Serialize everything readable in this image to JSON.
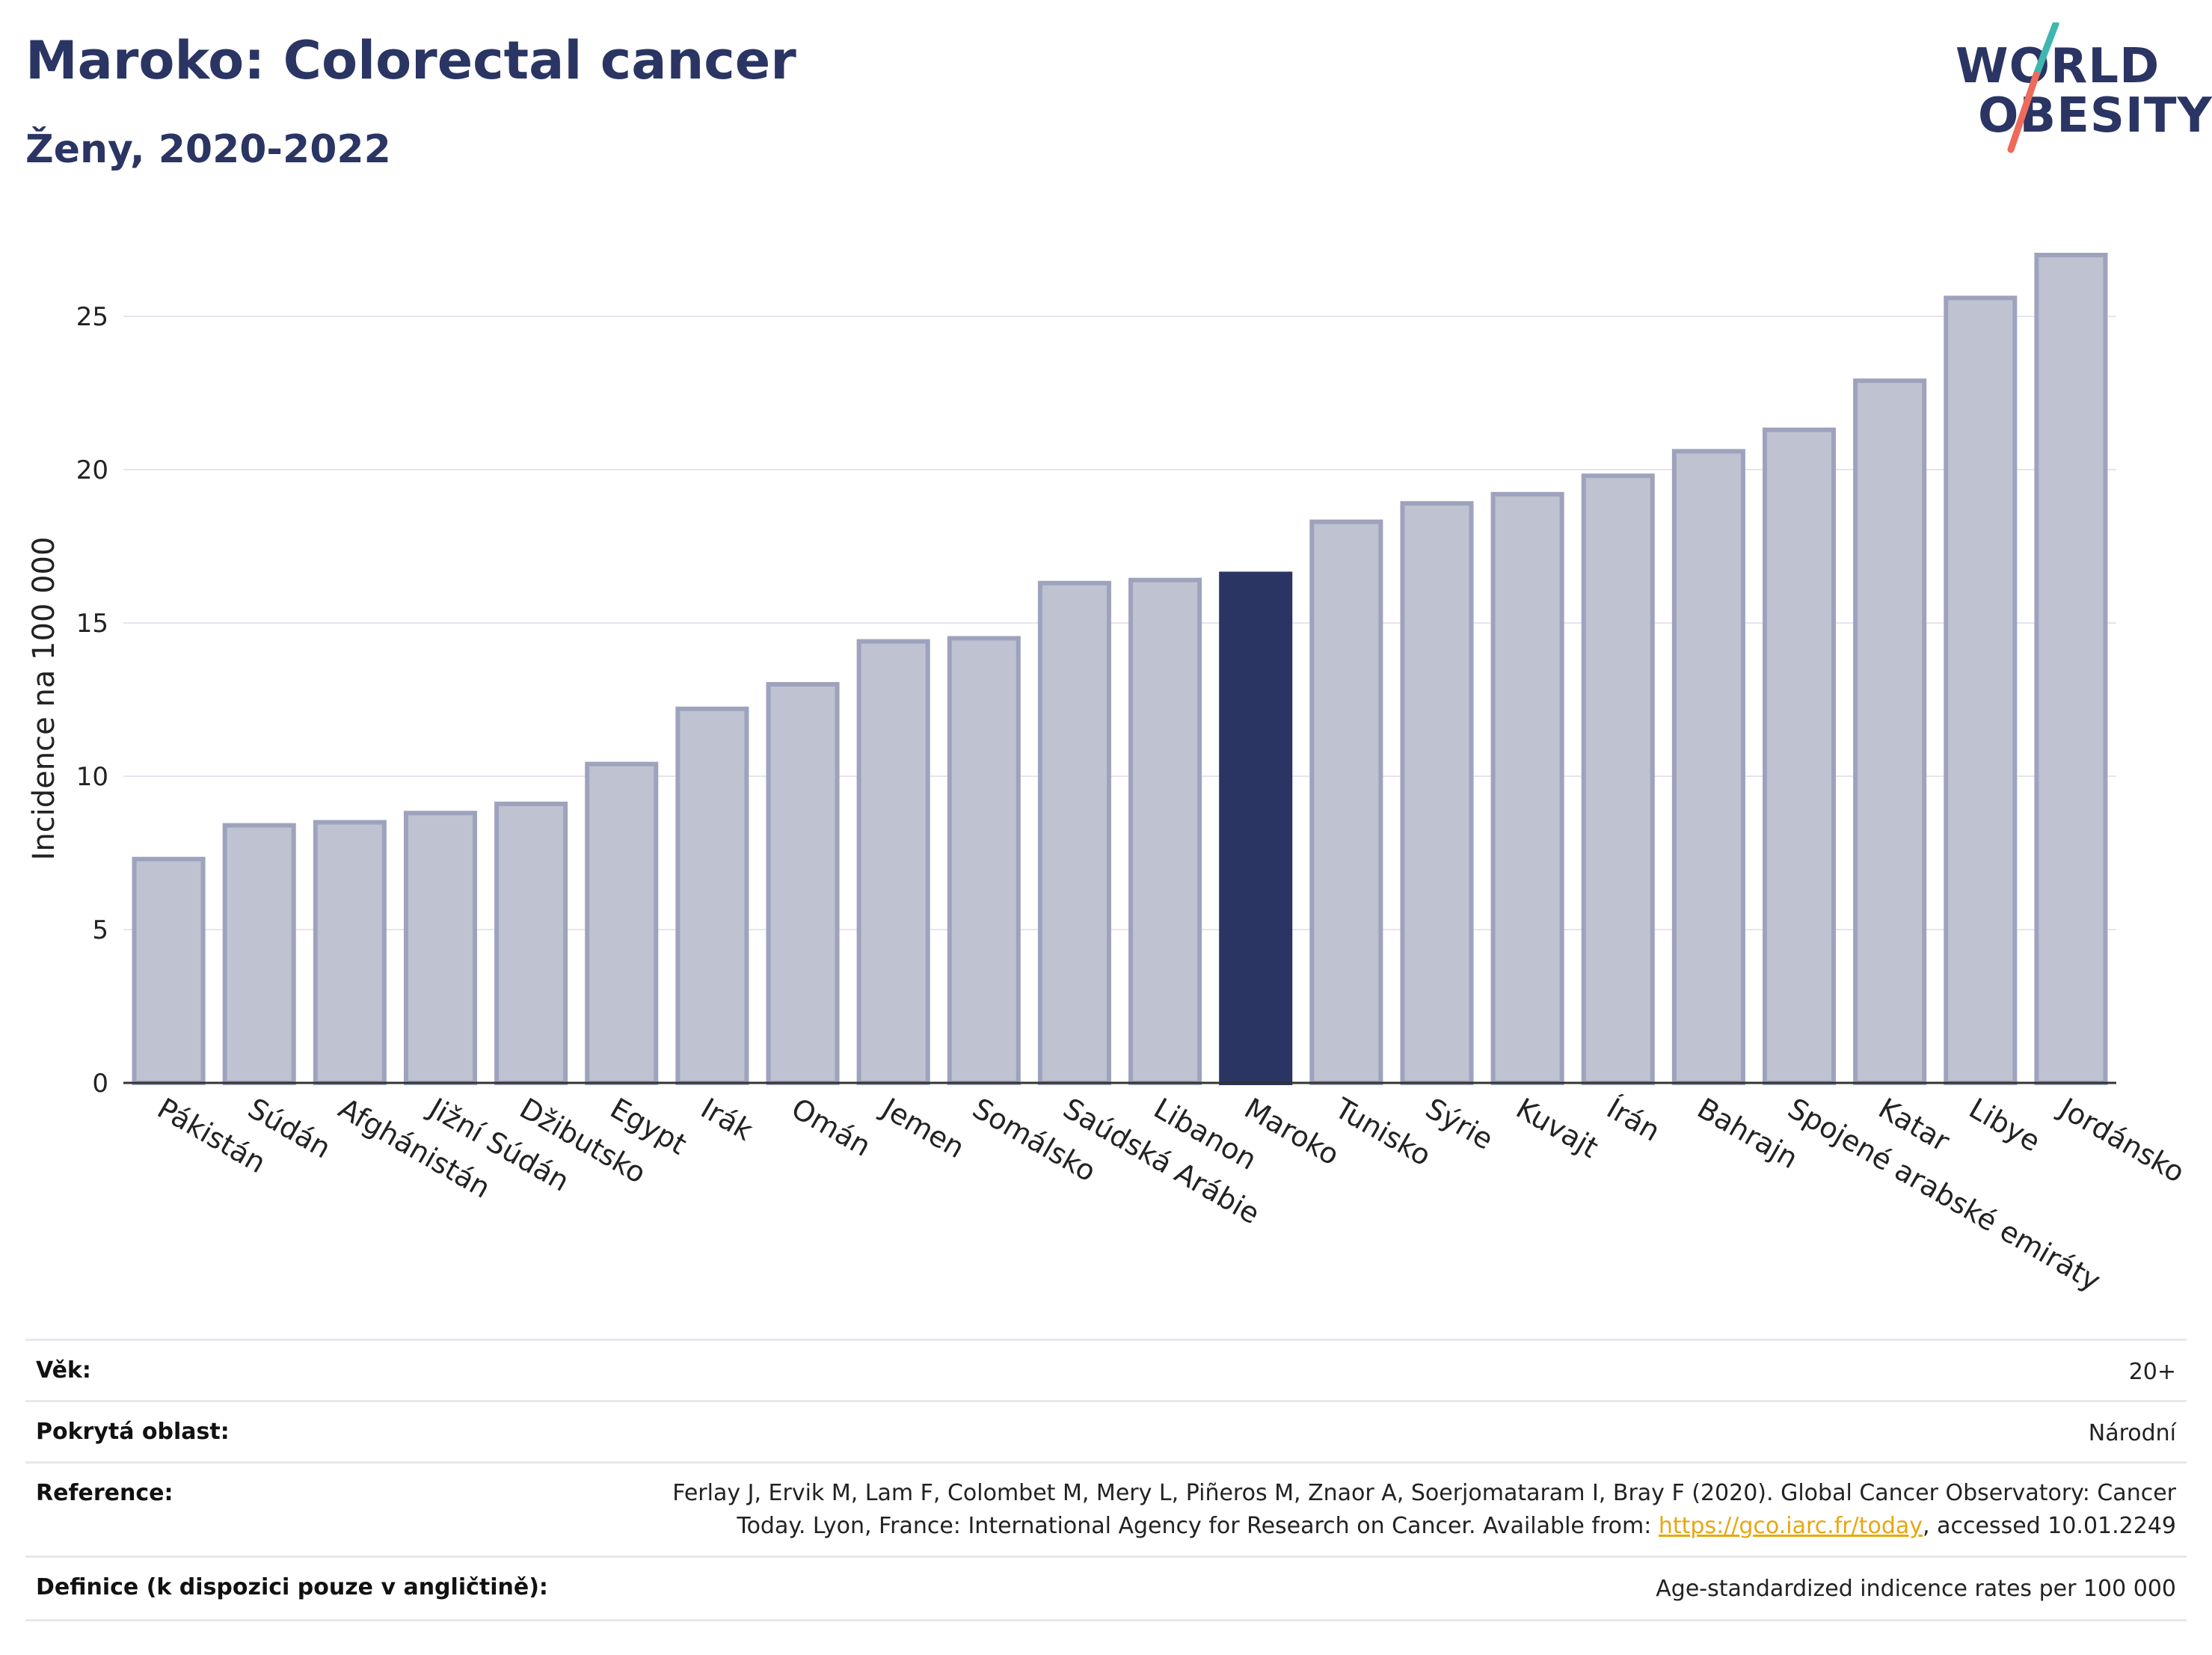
{
  "header": {
    "title": "Maroko: Colorectal cancer",
    "subtitle": "Ženy, 2020-2022"
  },
  "logo": {
    "line1": "WORLD",
    "line2": "OBESITY",
    "accent_teal": "#3fb7b0",
    "accent_coral": "#ee6b5b"
  },
  "colors": {
    "bar_default": "#bfc2d0",
    "bar_border": "#9ea3bd",
    "bar_highlight": "#2a3563",
    "text_dark": "#2a3563"
  },
  "chart_data": {
    "type": "bar",
    "ylabel": "Incidence na 100 000",
    "ylim": [
      0,
      28
    ],
    "yticks": [
      0,
      5,
      10,
      15,
      20,
      25
    ],
    "grid": true,
    "highlight": "Maroko",
    "categories": [
      "Pákistán",
      "Súdán",
      "Afghánistán",
      "Jižní Súdán",
      "Džibutsko",
      "Egypt",
      "Irák",
      "Omán",
      "Jemen",
      "Somálsko",
      "Saúdská Arábie",
      "Libanon",
      "Maroko",
      "Tunisko",
      "Sýrie",
      "Kuvajt",
      "Írán",
      "Bahrajn",
      "Spojené arabské emiráty",
      "Katar",
      "Libye",
      "Jordánsko"
    ],
    "values": [
      7.3,
      8.4,
      8.5,
      8.8,
      9.1,
      10.4,
      12.2,
      13.0,
      14.4,
      14.5,
      16.3,
      16.4,
      16.6,
      18.3,
      18.9,
      19.2,
      19.8,
      20.6,
      21.3,
      22.9,
      25.6,
      27.0
    ]
  },
  "meta": {
    "age_label": "Věk:",
    "age_value": "20+",
    "area_label": "Pokrytá oblast:",
    "area_value": "Národní",
    "reference_label": "Reference:",
    "reference_line1": "Ferlay J, Ervik M, Lam F, Colombet M, Mery L, Piñeros M, Znaor A, Soerjomataram I, Bray F (2020). Global Cancer Observatory: Cancer",
    "reference_line2_pre": "Today. Lyon, France: International Agency for Research on Cancer. Available from: ",
    "reference_link": "https://gco.iarc.fr/today",
    "reference_line2_post": ", accessed 10.01.2249",
    "definition_label": "Definice (k dispozici pouze v angličtině):",
    "definition_value": "Age-standardized indicence rates per 100 000"
  }
}
